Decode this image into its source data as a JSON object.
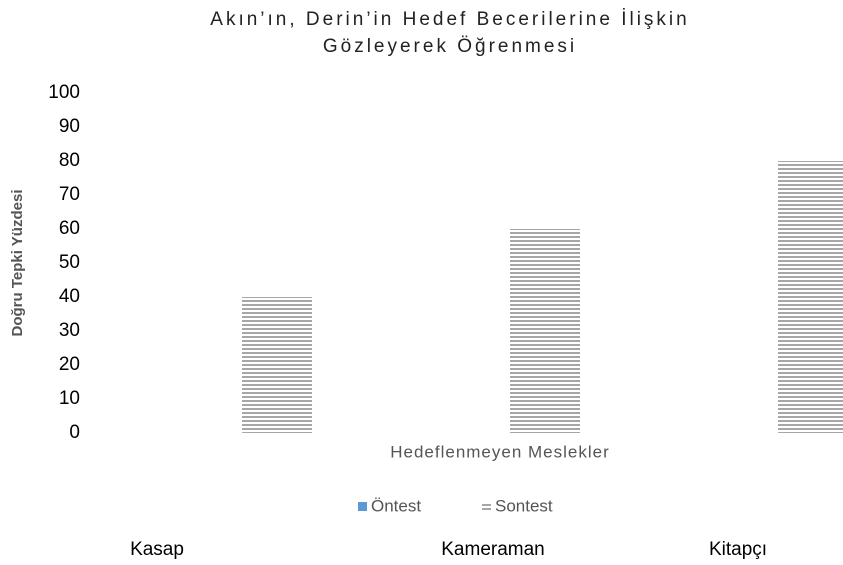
{
  "chart_data": {
    "type": "bar",
    "title": [
      "Akın’ın, Derin’in Hedef Becerilerine İlişkin",
      "Gözleyerek Öğrenmesi"
    ],
    "y_label": "Doğru Tepki Yüzdesi",
    "x_label": "Hedeflenmeyen Meslekler",
    "categories": [
      "Kasap",
      "Kameraman",
      "Kitapçı"
    ],
    "series": [
      {
        "name": "Öntest",
        "color": "#5b9bd5",
        "values": [
          0,
          0,
          0
        ]
      },
      {
        "name": "Sontest",
        "color": "#a6a6a6",
        "values": [
          40,
          60,
          80
        ]
      }
    ],
    "ylim": [
      0,
      100
    ],
    "yticks": [
      0,
      10,
      20,
      30,
      40,
      50,
      60,
      70,
      80,
      90,
      100
    ],
    "grid": false,
    "legend": "bottom"
  }
}
